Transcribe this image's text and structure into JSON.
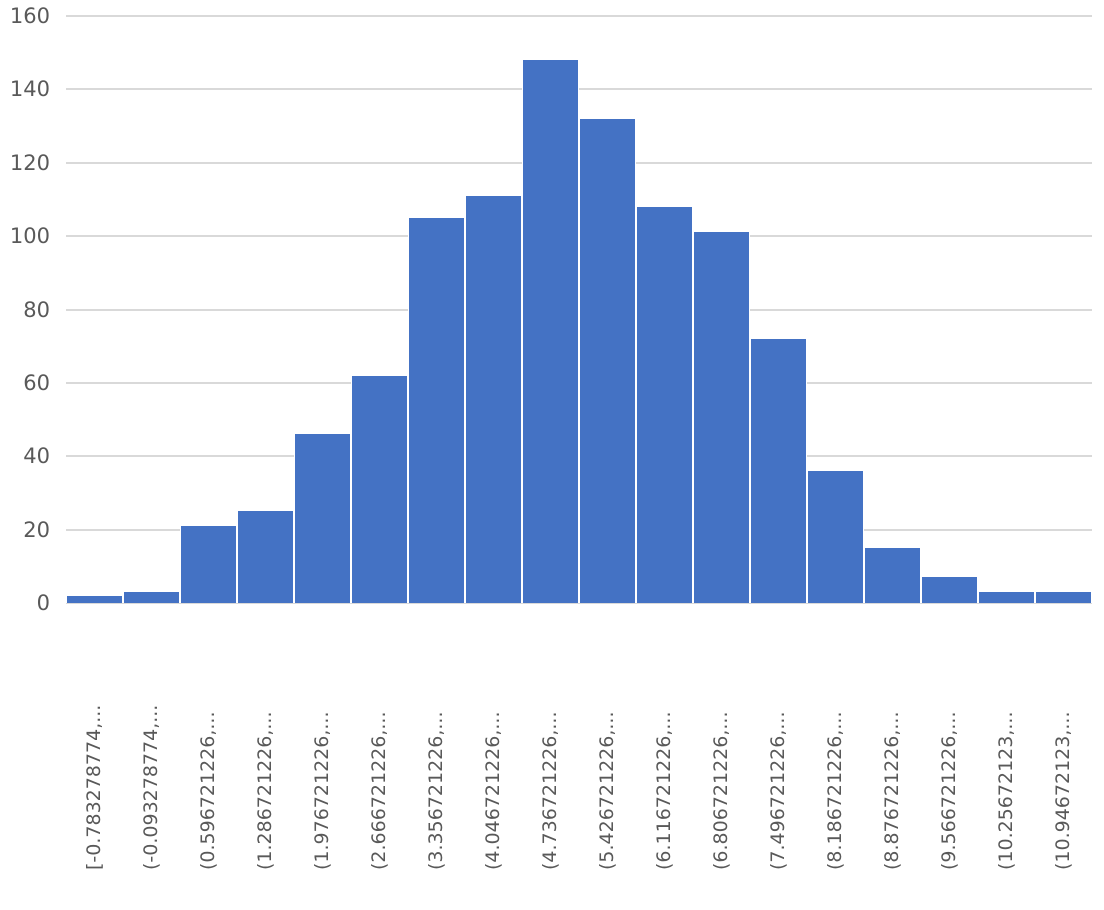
{
  "chart_data": {
    "type": "bar",
    "title": "",
    "xlabel": "",
    "ylabel": "",
    "ylim": [
      0,
      160
    ],
    "yticks": [
      0,
      20,
      40,
      60,
      80,
      100,
      120,
      140,
      160
    ],
    "grid": true,
    "legend": null,
    "bar_color": "#4472c4",
    "categories": [
      "[-0.783278774,...",
      "(-0.093278774,...",
      "(0.596721226,...",
      "(1.286721226,...",
      "(1.976721226,...",
      "(2.666721226,...",
      "(3.356721226,...",
      "(4.046721226,...",
      "(4.736721226,...",
      "(5.426721226,...",
      "(6.116721226,...",
      "(6.806721226,...",
      "(7.496721226,...",
      "(8.186721226,...",
      "(8.876721226,...",
      "(9.566721226,...",
      "(10.25672123,...",
      "(10.94672123,..."
    ],
    "values": [
      2,
      3,
      21,
      25,
      46,
      62,
      105,
      111,
      148,
      132,
      108,
      101,
      72,
      36,
      15,
      7,
      3,
      3
    ]
  }
}
